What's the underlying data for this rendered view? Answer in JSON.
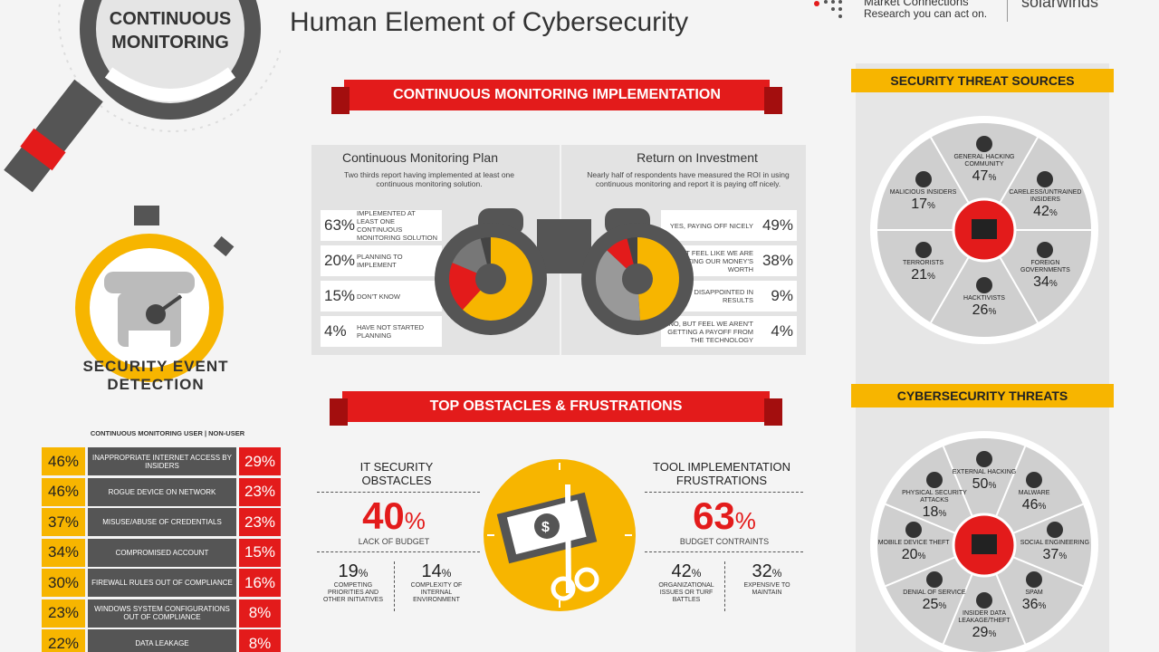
{
  "header": {
    "title": "Human Element of Cybersecurity",
    "brand_line1": "Market Connections",
    "brand_line2": "Research you can act on.",
    "brand2": "solarwinds"
  },
  "continuous_monitoring_badge": "CONTINUOUS MONITORING",
  "implementation": {
    "ribbon": "CONTINUOUS MONITORING IMPLEMENTATION",
    "plan": {
      "title": "Continuous Monitoring Plan",
      "desc": "Two thirds report having implemented at least one continuous monitoring solution.",
      "rows": [
        {
          "value": "63%",
          "label": "IMPLEMENTED AT LEAST ONE CONTINUOUS MONITORING SOLUTION"
        },
        {
          "value": "20%",
          "label": "PLANNING TO IMPLEMENT"
        },
        {
          "value": "15%",
          "label": "DON'T KNOW"
        },
        {
          "value": "4%",
          "label": "HAVE NOT STARTED PLANNING"
        }
      ]
    },
    "roi": {
      "title": "Return on Investment",
      "desc": "Nearly half of respondents have measured the ROI in using continuous monitoring and report it is paying off nicely.",
      "rows": [
        {
          "value": "49%",
          "label": "YES, PAYING OFF NICELY"
        },
        {
          "value": "38%",
          "label": "NO, BUT FEEL LIKE WE ARE GETTING OUR MONEY'S WORTH"
        },
        {
          "value": "9%",
          "label": "YES, BUT DISAPPOINTED IN RESULTS"
        },
        {
          "value": "4%",
          "label": "NO, BUT FEEL WE AREN'T GETTING A PAYOFF FROM THE TECHNOLOGY"
        }
      ]
    }
  },
  "security_event": {
    "title": "SECURITY EVENT DETECTION",
    "legend": "CONTINUOUS MONITORING USER | NON-USER",
    "rows": [
      {
        "user": "46%",
        "label": "INAPPROPRIATE INTERNET ACCESS BY INSIDERS",
        "nonuser": "29%"
      },
      {
        "user": "46%",
        "label": "ROGUE DEVICE ON NETWORK",
        "nonuser": "23%"
      },
      {
        "user": "37%",
        "label": "MISUSE/ABUSE OF CREDENTIALS",
        "nonuser": "23%"
      },
      {
        "user": "34%",
        "label": "COMPROMISED ACCOUNT",
        "nonuser": "15%"
      },
      {
        "user": "30%",
        "label": "FIREWALL RULES OUT OF COMPLIANCE",
        "nonuser": "16%"
      },
      {
        "user": "23%",
        "label": "WINDOWS SYSTEM CONFIGURATIONS OUT OF COMPLIANCE",
        "nonuser": "8%"
      },
      {
        "user": "22%",
        "label": "DATA LEAKAGE",
        "nonuser": "8%"
      }
    ]
  },
  "obstacles": {
    "ribbon": "TOP OBSTACLES & FRUSTRATIONS",
    "it": {
      "title": "IT SECURITY OBSTACLES",
      "main_value": "40",
      "main_label": "LACK OF BUDGET",
      "sub": [
        {
          "value": "19",
          "label": "COMPETING PRIORITIES AND OTHER INITIATIVES"
        },
        {
          "value": "14",
          "label": "COMPLEXITY OF INTERNAL ENVIRONMENT"
        }
      ]
    },
    "tool": {
      "title": "TOOL IMPLEMENTATION FRUSTRATIONS",
      "main_value": "63",
      "main_label": "BUDGET CONTRAINTS",
      "sub": [
        {
          "value": "42",
          "label": "ORGANIZATIONAL ISSUES OR TURF BATTLES"
        },
        {
          "value": "32",
          "label": "EXPENSIVE TO MAINTAIN"
        }
      ]
    }
  },
  "threat_sources": {
    "ribbon": "SECURITY THREAT SOURCES",
    "items": [
      {
        "label": "GENERAL HACKING COMMUNITY",
        "value": "47"
      },
      {
        "label": "CARELESS/UNTRAINED INSIDERS",
        "value": "42"
      },
      {
        "label": "FOREIGN GOVERNMENTS",
        "value": "34"
      },
      {
        "label": "HACKTIVISTS",
        "value": "26"
      },
      {
        "label": "TERRORISTS",
        "value": "21"
      },
      {
        "label": "MALICIOUS INSIDERS",
        "value": "17"
      }
    ]
  },
  "cyber_threats": {
    "ribbon": "CYBERSECURITY THREATS",
    "items": [
      {
        "label": "EXTERNAL HACKING",
        "value": "50"
      },
      {
        "label": "MALWARE",
        "value": "46"
      },
      {
        "label": "SOCIAL ENGINEERING",
        "value": "37"
      },
      {
        "label": "SPAM",
        "value": "36"
      },
      {
        "label": "INSIDER DATA LEAKAGE/THEFT",
        "value": "29"
      },
      {
        "label": "DENIAL OF SERVICE",
        "value": "25"
      },
      {
        "label": "MOBILE DEVICE THEFT",
        "value": "20"
      },
      {
        "label": "PHYSICAL SECURITY ATTACKS",
        "value": "18"
      }
    ]
  },
  "colors": {
    "red": "#e31b1b",
    "yellow": "#f7b500",
    "gray": "#555555"
  },
  "pct_sign": "%"
}
